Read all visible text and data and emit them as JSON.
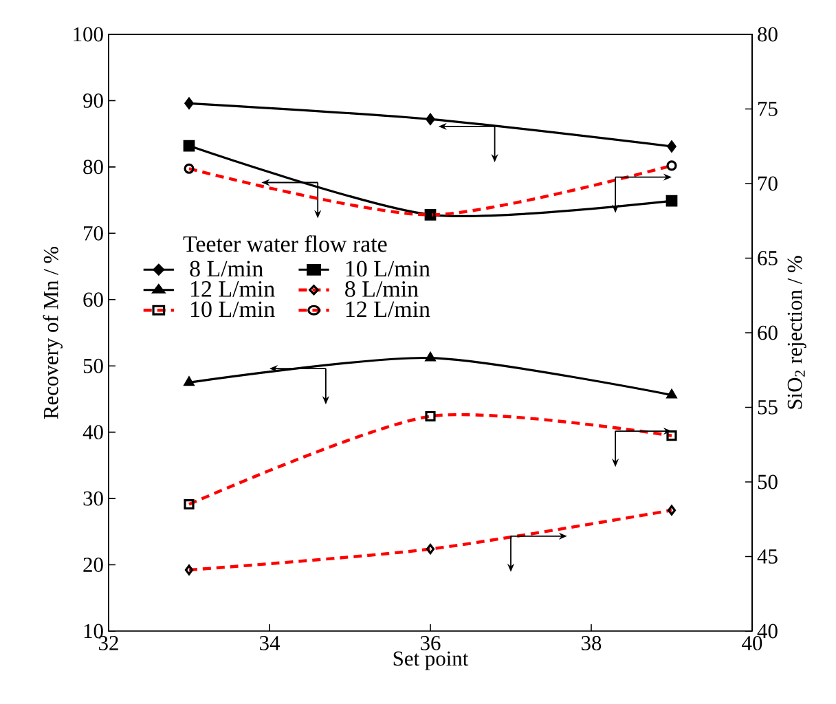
{
  "chart_data": {
    "type": "line",
    "xlabel": "Set point",
    "ylabel": "Recovery of Mn / %",
    "y2label": "SiO$_{2}$ rejection / %",
    "legend_title": "Teeter water flow rate",
    "legend": "left",
    "x": [
      33,
      36,
      39
    ],
    "xlim": [
      32,
      40
    ],
    "xticks": [
      32,
      34,
      36,
      38,
      40
    ],
    "ylim": [
      10,
      100
    ],
    "yticks": [
      10,
      20,
      30,
      40,
      50,
      60,
      70,
      80,
      90,
      100
    ],
    "y2lim": [
      40,
      80
    ],
    "y2ticks": [
      40,
      45,
      50,
      55,
      60,
      65,
      70,
      75,
      80
    ],
    "series": [
      {
        "name": "8 L/min",
        "color": "#000000",
        "marker": "diamond",
        "line_style": "solid",
        "values": [
          89.6,
          87.2,
          83.1
        ]
      },
      {
        "name": "10 L/min",
        "color": "#000000",
        "marker": "square",
        "line_style": "solid",
        "values": [
          83.2,
          72.8,
          74.9
        ]
      },
      {
        "name": "12 L/min",
        "color": "#000000",
        "marker": "triangle",
        "line_style": "solid",
        "values": [
          47.5,
          51.2,
          45.6
        ]
      },
      {
        "name": "8 L/min",
        "color": "#ff0000",
        "marker": "diamond",
        "line_style": "dashed",
        "axis": "y2",
        "values": [
          44.1,
          45.5,
          48.1
        ]
      },
      {
        "name": "10 L/min",
        "color": "#ff0000",
        "marker": "square",
        "line_style": "dashed",
        "axis": "y2",
        "values": [
          48.5,
          54.4,
          53.1
        ]
      },
      {
        "name": "12 L/min",
        "color": "#ff0000",
        "marker": "circle",
        "line_style": "dashed",
        "axis": "y2",
        "values": [
          71.0,
          67.9,
          71.2
        ]
      }
    ]
  }
}
